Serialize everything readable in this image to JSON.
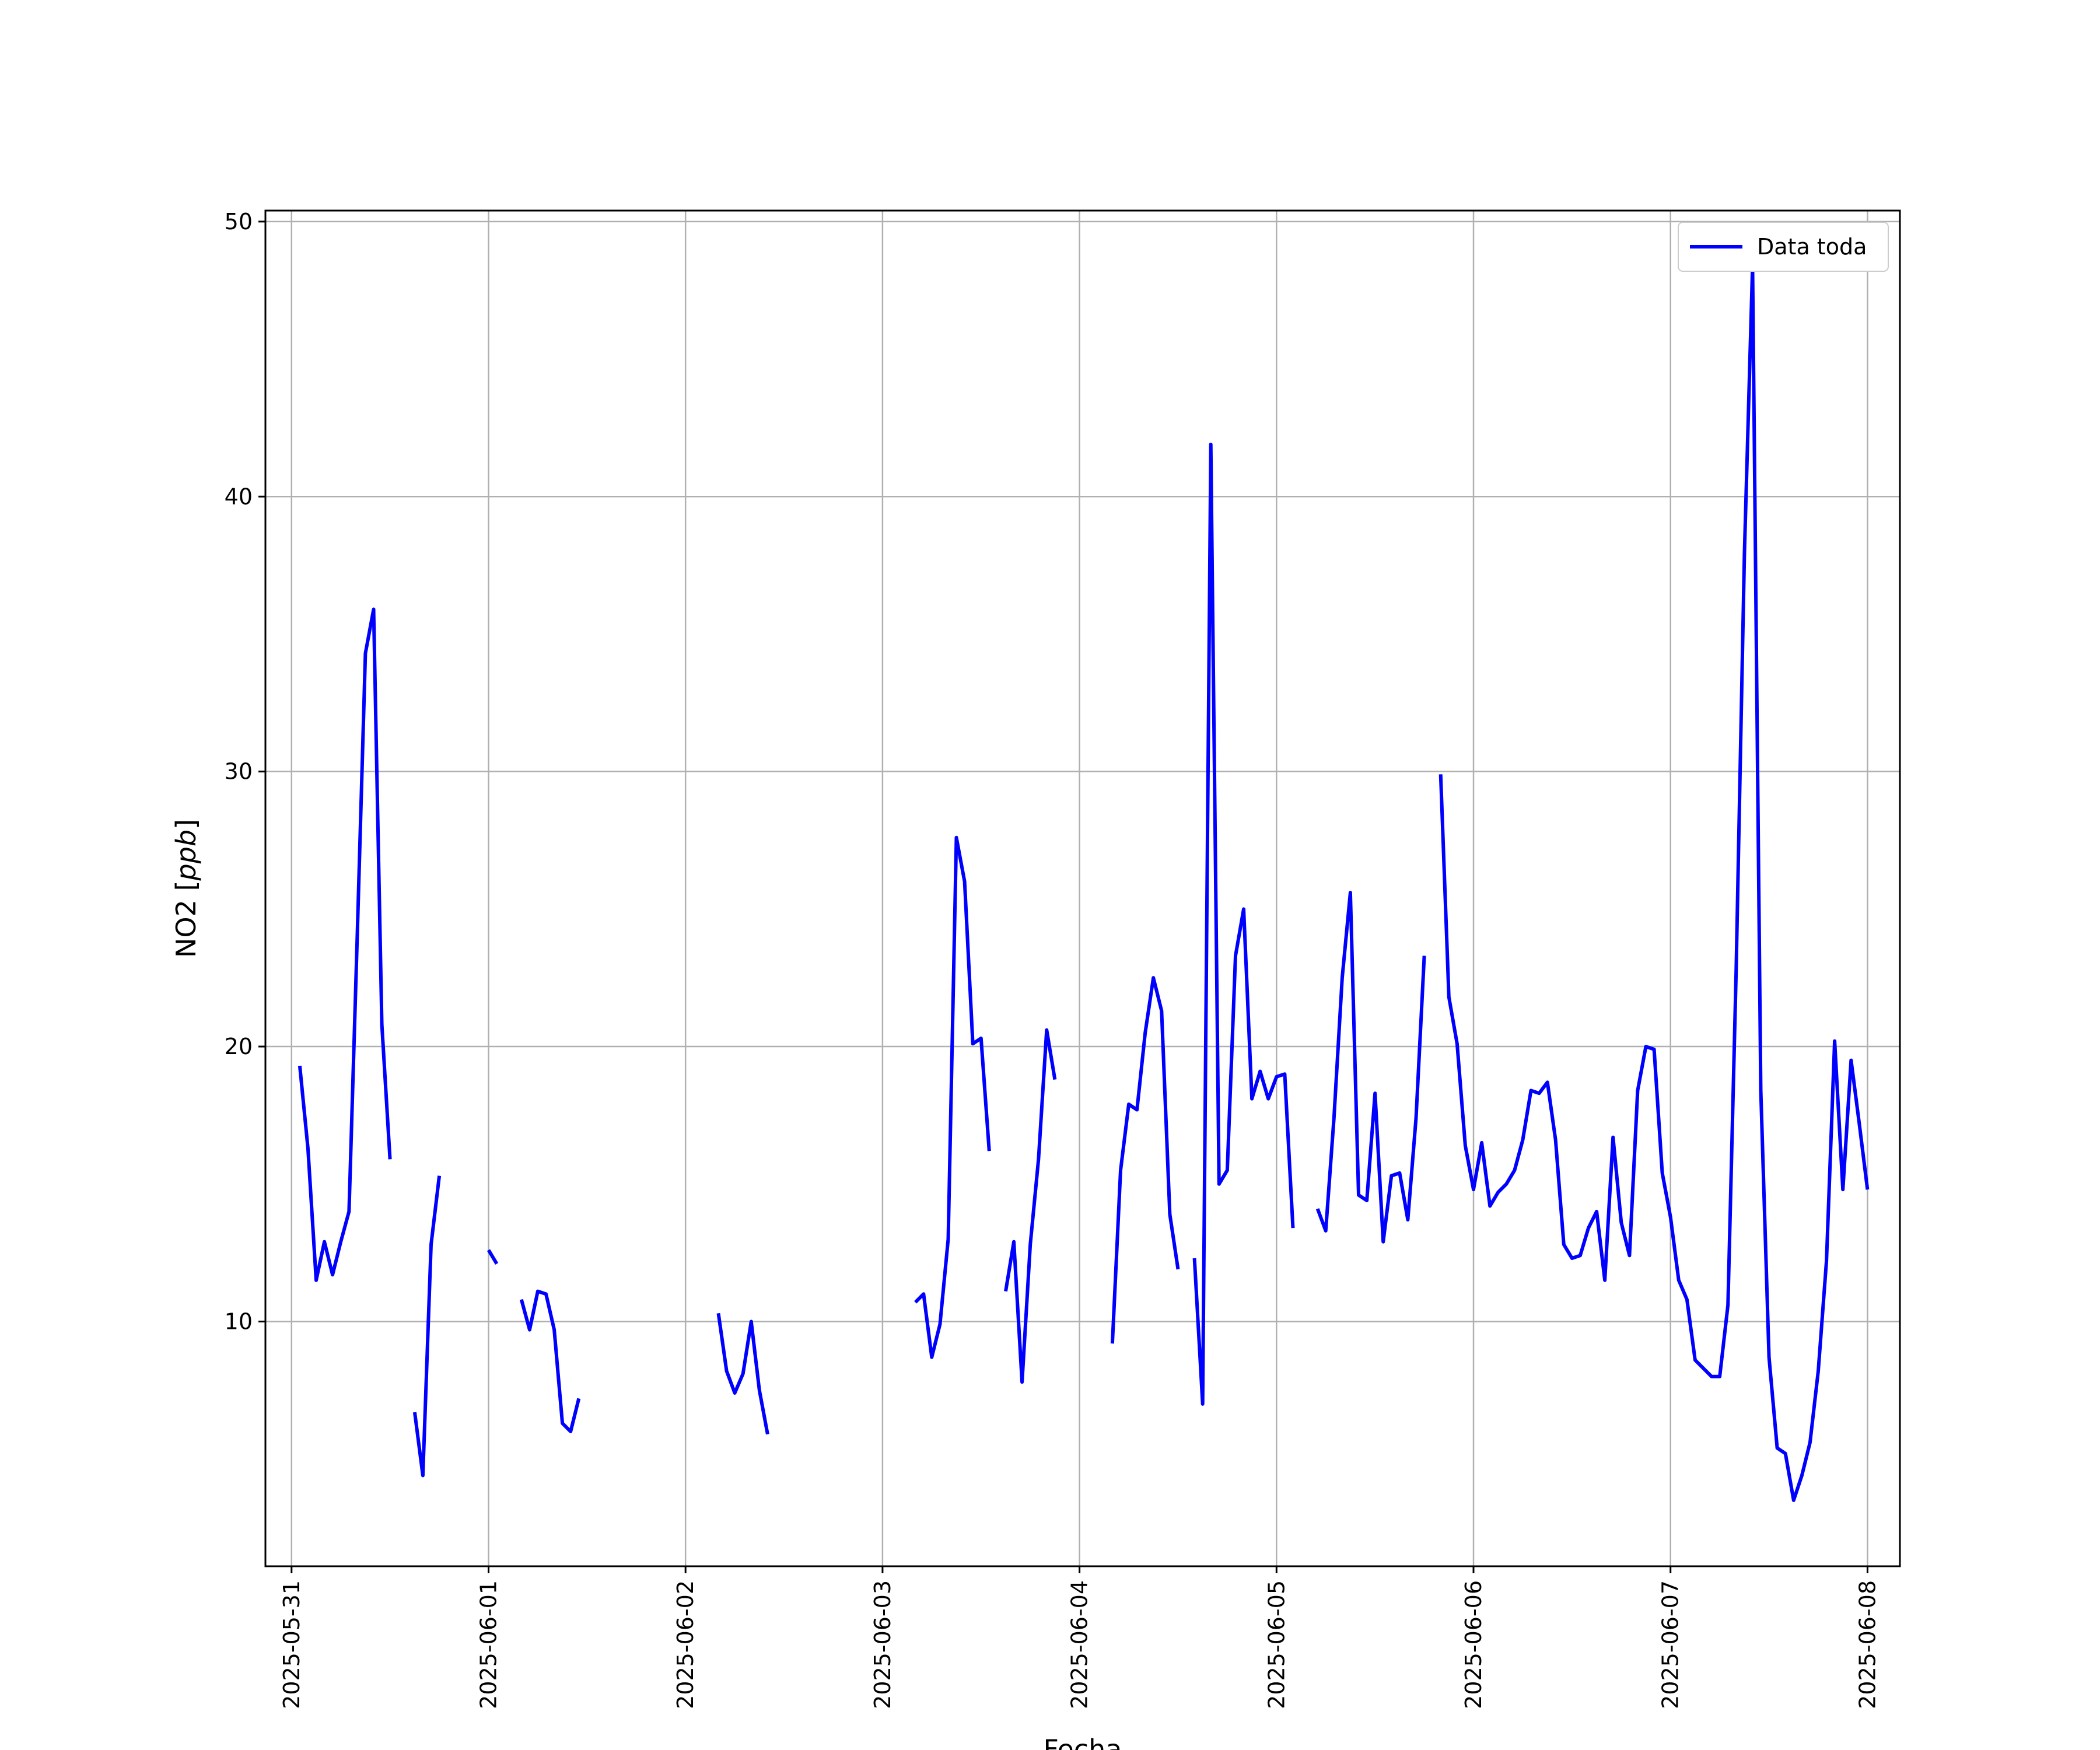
{
  "chart_data": {
    "type": "line",
    "title": "",
    "xlabel": "Fecha",
    "ylabel_main": "NO2 [",
    "ylabel_unit": "ppb",
    "ylabel_end": "]",
    "xlim": [
      "2025-05-30T20:49",
      "2025-06-08T03:57"
    ],
    "ylim": [
      1.1,
      50.4
    ],
    "x_ticks": [
      "2025-05-31",
      "2025-06-01",
      "2025-06-02",
      "2025-06-03",
      "2025-06-04",
      "2025-06-05",
      "2025-06-06",
      "2025-06-07",
      "2025-06-08"
    ],
    "y_ticks": [
      10,
      20,
      30,
      40,
      50
    ],
    "grid": true,
    "legend_position": "top-right",
    "series": [
      {
        "name": "Data toda",
        "color": "#0000ff",
        "points": [
          [
            "2025-05-31T01:00",
            19.3
          ],
          [
            "2025-05-31T02:00",
            16.3
          ],
          [
            "2025-05-31T03:00",
            11.5
          ],
          [
            "2025-05-31T04:00",
            12.9
          ],
          [
            "2025-05-31T05:00",
            11.7
          ],
          [
            "2025-05-31T06:00",
            12.9
          ],
          [
            "2025-05-31T07:00",
            14.0
          ],
          [
            "2025-05-31T08:00",
            24.0
          ],
          [
            "2025-05-31T09:00",
            34.3
          ],
          [
            "2025-05-31T10:00",
            35.9
          ],
          [
            "2025-05-31T11:00",
            20.8
          ],
          [
            "2025-05-31T12:00",
            15.9
          ],
          [
            "2025-05-31T13:00",
            null
          ],
          [
            "2025-05-31T15:00",
            6.7
          ],
          [
            "2025-05-31T16:00",
            4.4
          ],
          [
            "2025-05-31T17:00",
            12.8
          ],
          [
            "2025-05-31T18:00",
            15.3
          ],
          [
            "2025-05-31T19:00",
            null
          ],
          [
            "2025-06-01T00:00",
            12.6
          ],
          [
            "2025-06-01T01:00",
            12.1
          ],
          [
            "2025-06-01T02:00",
            null
          ],
          [
            "2025-06-01T04:00",
            10.8
          ],
          [
            "2025-06-01T05:00",
            9.7
          ],
          [
            "2025-06-01T06:00",
            11.1
          ],
          [
            "2025-06-01T07:00",
            11.0
          ],
          [
            "2025-06-01T08:00",
            9.7
          ],
          [
            "2025-06-01T09:00",
            6.3
          ],
          [
            "2025-06-01T10:00",
            6.0
          ],
          [
            "2025-06-01T11:00",
            7.2
          ],
          [
            "2025-06-01T12:00",
            null
          ],
          [
            "2025-06-02T04:00",
            10.3
          ],
          [
            "2025-06-02T05:00",
            8.2
          ],
          [
            "2025-06-02T06:00",
            7.4
          ],
          [
            "2025-06-02T07:00",
            8.1
          ],
          [
            "2025-06-02T08:00",
            10.0
          ],
          [
            "2025-06-02T09:00",
            7.5
          ],
          [
            "2025-06-02T10:00",
            5.9
          ],
          [
            "2025-06-02T11:00",
            null
          ],
          [
            "2025-06-03T04:00",
            10.7
          ],
          [
            "2025-06-03T05:00",
            11.0
          ],
          [
            "2025-06-03T06:00",
            8.7
          ],
          [
            "2025-06-03T07:00",
            9.9
          ],
          [
            "2025-06-03T08:00",
            13.0
          ],
          [
            "2025-06-03T09:00",
            27.6
          ],
          [
            "2025-06-03T10:00",
            26.0
          ],
          [
            "2025-06-03T11:00",
            20.1
          ],
          [
            "2025-06-03T12:00",
            20.3
          ],
          [
            "2025-06-03T13:00",
            16.2
          ],
          [
            "2025-06-03T14:00",
            null
          ],
          [
            "2025-06-03T15:00",
            11.1
          ],
          [
            "2025-06-03T16:00",
            12.9
          ],
          [
            "2025-06-03T17:00",
            7.8
          ],
          [
            "2025-06-03T18:00",
            12.8
          ],
          [
            "2025-06-03T19:00",
            15.9
          ],
          [
            "2025-06-03T20:00",
            20.6
          ],
          [
            "2025-06-03T21:00",
            18.8
          ],
          [
            "2025-06-03T22:00",
            null
          ],
          [
            "2025-06-04T04:00",
            9.2
          ],
          [
            "2025-06-04T05:00",
            15.5
          ],
          [
            "2025-06-04T06:00",
            17.9
          ],
          [
            "2025-06-04T07:00",
            17.7
          ],
          [
            "2025-06-04T08:00",
            20.5
          ],
          [
            "2025-06-04T09:00",
            22.5
          ],
          [
            "2025-06-04T10:00",
            21.3
          ],
          [
            "2025-06-04T11:00",
            13.9
          ],
          [
            "2025-06-04T12:00",
            11.9
          ],
          [
            "2025-06-04T13:00",
            null
          ],
          [
            "2025-06-04T14:00",
            12.3
          ],
          [
            "2025-06-04T15:00",
            7.0
          ],
          [
            "2025-06-04T16:00",
            41.9
          ],
          [
            "2025-06-04T17:00",
            15.0
          ],
          [
            "2025-06-04T18:00",
            15.5
          ],
          [
            "2025-06-04T19:00",
            23.3
          ],
          [
            "2025-06-04T20:00",
            25.0
          ],
          [
            "2025-06-04T21:00",
            18.1
          ],
          [
            "2025-06-04T22:00",
            19.1
          ],
          [
            "2025-06-04T23:00",
            18.1
          ],
          [
            "2025-06-05T00:00",
            18.9
          ],
          [
            "2025-06-05T01:00",
            19.0
          ],
          [
            "2025-06-05T02:00",
            13.4
          ],
          [
            "2025-06-05T03:00",
            null
          ],
          [
            "2025-06-05T05:00",
            14.1
          ],
          [
            "2025-06-05T06:00",
            13.3
          ],
          [
            "2025-06-05T07:00",
            17.4
          ],
          [
            "2025-06-05T08:00",
            22.5
          ],
          [
            "2025-06-05T09:00",
            25.6
          ],
          [
            "2025-06-05T10:00",
            14.6
          ],
          [
            "2025-06-05T11:00",
            14.4
          ],
          [
            "2025-06-05T12:00",
            18.3
          ],
          [
            "2025-06-05T13:00",
            12.9
          ],
          [
            "2025-06-05T14:00",
            15.3
          ],
          [
            "2025-06-05T15:00",
            15.4
          ],
          [
            "2025-06-05T16:00",
            13.7
          ],
          [
            "2025-06-05T17:00",
            17.4
          ],
          [
            "2025-06-05T18:00",
            23.3
          ],
          [
            "2025-06-05T19:00",
            null
          ],
          [
            "2025-06-05T20:00",
            29.9
          ],
          [
            "2025-06-05T21:00",
            21.8
          ],
          [
            "2025-06-05T22:00",
            20.1
          ],
          [
            "2025-06-05T23:00",
            16.4
          ],
          [
            "2025-06-06T00:00",
            14.8
          ],
          [
            "2025-06-06T01:00",
            16.5
          ],
          [
            "2025-06-06T02:00",
            14.2
          ],
          [
            "2025-06-06T03:00",
            14.7
          ],
          [
            "2025-06-06T04:00",
            15.0
          ],
          [
            "2025-06-06T05:00",
            15.5
          ],
          [
            "2025-06-06T06:00",
            16.6
          ],
          [
            "2025-06-06T07:00",
            18.4
          ],
          [
            "2025-06-06T08:00",
            18.3
          ],
          [
            "2025-06-06T09:00",
            18.7
          ],
          [
            "2025-06-06T10:00",
            16.6
          ],
          [
            "2025-06-06T11:00",
            12.8
          ],
          [
            "2025-06-06T12:00",
            12.3
          ],
          [
            "2025-06-06T13:00",
            12.4
          ],
          [
            "2025-06-06T14:00",
            13.4
          ],
          [
            "2025-06-06T15:00",
            14.0
          ],
          [
            "2025-06-06T16:00",
            11.5
          ],
          [
            "2025-06-06T17:00",
            16.7
          ],
          [
            "2025-06-06T18:00",
            13.6
          ],
          [
            "2025-06-06T19:00",
            12.4
          ],
          [
            "2025-06-06T20:00",
            18.4
          ],
          [
            "2025-06-06T21:00",
            20.0
          ],
          [
            "2025-06-06T22:00",
            19.9
          ],
          [
            "2025-06-06T23:00",
            15.4
          ],
          [
            "2025-06-07T00:00",
            13.8
          ],
          [
            "2025-06-07T01:00",
            11.5
          ],
          [
            "2025-06-07T02:00",
            10.8
          ],
          [
            "2025-06-07T03:00",
            8.6
          ],
          [
            "2025-06-07T04:00",
            8.3
          ],
          [
            "2025-06-07T05:00",
            8.0
          ],
          [
            "2025-06-07T06:00",
            8.0
          ],
          [
            "2025-06-07T07:00",
            10.6
          ],
          [
            "2025-06-07T08:00",
            22.8
          ],
          [
            "2025-06-07T09:00",
            37.9
          ],
          [
            "2025-06-07T10:00",
            48.4
          ],
          [
            "2025-06-07T11:00",
            18.4
          ],
          [
            "2025-06-07T12:00",
            8.7
          ],
          [
            "2025-06-07T13:00",
            5.4
          ],
          [
            "2025-06-07T14:00",
            5.2
          ],
          [
            "2025-06-07T15:00",
            3.5
          ],
          [
            "2025-06-07T16:00",
            4.4
          ],
          [
            "2025-06-07T17:00",
            5.6
          ],
          [
            "2025-06-07T18:00",
            8.2
          ],
          [
            "2025-06-07T19:00",
            12.2
          ],
          [
            "2025-06-07T20:00",
            20.2
          ],
          [
            "2025-06-07T21:00",
            14.8
          ],
          [
            "2025-06-07T22:00",
            19.5
          ],
          [
            "2025-06-07T23:00",
            17.2
          ],
          [
            "2025-06-08T00:00",
            14.8
          ]
        ]
      }
    ]
  }
}
